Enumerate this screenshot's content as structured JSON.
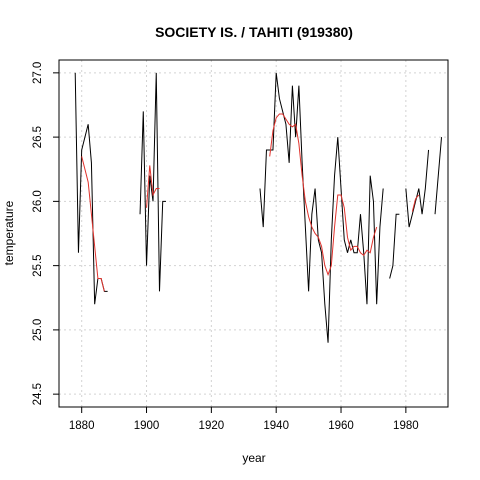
{
  "chart_data": {
    "type": "line",
    "title": "SOCIETY IS. / TAHITI (919380)",
    "xlabel": "year",
    "ylabel": "temperature",
    "xlim": [
      1873,
      1993
    ],
    "ylim": [
      24.4,
      27.1
    ],
    "xticks": [
      1880,
      1900,
      1920,
      1940,
      1960,
      1980
    ],
    "yticks": [
      24.5,
      25.0,
      25.5,
      26.0,
      26.5,
      27.0
    ],
    "xtick_labels": [
      "1880",
      "1900",
      "1920",
      "1940",
      "1960",
      "1980"
    ],
    "ytick_labels": [
      "24.5",
      "25.0",
      "25.5",
      "26.0",
      "26.5",
      "27.0"
    ],
    "grid": true,
    "series": [
      {
        "color": "#000000",
        "segments": [
          [
            [
              1878,
              27.0
            ],
            [
              1879,
              25.6
            ],
            [
              1880,
              26.4
            ],
            [
              1881,
              26.5
            ],
            [
              1882,
              26.6
            ],
            [
              1883,
              26.3
            ],
            [
              1884,
              25.2
            ],
            [
              1885,
              25.4
            ],
            [
              1886,
              25.4
            ],
            [
              1887,
              25.3
            ],
            [
              1888,
              25.3
            ]
          ],
          [
            [
              1898,
              25.9
            ],
            [
              1899,
              26.7
            ],
            [
              1900,
              25.5
            ],
            [
              1901,
              26.2
            ],
            [
              1902,
              26.0
            ],
            [
              1903,
              27.0
            ],
            [
              1904,
              25.3
            ],
            [
              1905,
              26.0
            ],
            [
              1906,
              26.0
            ]
          ],
          [
            [
              1935,
              26.1
            ],
            [
              1936,
              25.8
            ],
            [
              1937,
              26.4
            ],
            [
              1938,
              26.4
            ],
            [
              1939,
              26.4
            ],
            [
              1940,
              27.0
            ],
            [
              1941,
              26.8
            ],
            [
              1942,
              26.7
            ],
            [
              1943,
              26.6
            ],
            [
              1944,
              26.3
            ],
            [
              1945,
              26.9
            ],
            [
              1946,
              26.5
            ],
            [
              1947,
              26.9
            ],
            [
              1948,
              26.3
            ],
            [
              1949,
              25.8
            ],
            [
              1950,
              25.3
            ],
            [
              1951,
              25.9
            ],
            [
              1952,
              26.1
            ],
            [
              1953,
              25.7
            ],
            [
              1954,
              25.6
            ],
            [
              1955,
              25.2
            ],
            [
              1956,
              24.9
            ],
            [
              1957,
              25.7
            ],
            [
              1958,
              26.2
            ],
            [
              1959,
              26.5
            ],
            [
              1960,
              26.1
            ],
            [
              1961,
              25.7
            ],
            [
              1962,
              25.6
            ],
            [
              1963,
              25.7
            ],
            [
              1964,
              25.6
            ],
            [
              1965,
              25.6
            ],
            [
              1966,
              25.9
            ],
            [
              1967,
              25.6
            ],
            [
              1968,
              25.2
            ],
            [
              1969,
              26.2
            ],
            [
              1970,
              26.0
            ],
            [
              1971,
              25.2
            ],
            [
              1972,
              25.8
            ],
            [
              1973,
              26.1
            ]
          ],
          [
            [
              1975,
              25.4
            ],
            [
              1976,
              25.5
            ],
            [
              1977,
              25.9
            ],
            [
              1978,
              25.9
            ]
          ],
          [
            [
              1980,
              26.1
            ],
            [
              1981,
              25.8
            ],
            [
              1982,
              25.9
            ],
            [
              1983,
              26.0
            ],
            [
              1984,
              26.1
            ],
            [
              1985,
              25.9
            ],
            [
              1986,
              26.1
            ],
            [
              1987,
              26.4
            ]
          ],
          [
            [
              1989,
              25.9
            ],
            [
              1990,
              26.2
            ],
            [
              1991,
              26.5
            ]
          ]
        ]
      },
      {
        "color": "#e0322c",
        "segments": [
          [
            [
              1880,
              26.35
            ],
            [
              1881,
              26.25
            ],
            [
              1882,
              26.15
            ],
            [
              1883,
              25.9
            ],
            [
              1884,
              25.65
            ],
            [
              1885,
              25.4
            ],
            [
              1886,
              25.4
            ],
            [
              1887,
              25.3
            ]
          ],
          [
            [
              1900,
              25.95
            ],
            [
              1901,
              26.28
            ],
            [
              1902,
              26.05
            ],
            [
              1903,
              26.1
            ],
            [
              1904,
              26.1
            ]
          ],
          [
            [
              1938,
              26.35
            ],
            [
              1939,
              26.55
            ],
            [
              1940,
              26.65
            ],
            [
              1941,
              26.68
            ],
            [
              1942,
              26.68
            ],
            [
              1943,
              26.64
            ],
            [
              1944,
              26.6
            ],
            [
              1945,
              26.58
            ],
            [
              1946,
              26.6
            ],
            [
              1947,
              26.45
            ],
            [
              1948,
              26.2
            ],
            [
              1949,
              26.0
            ],
            [
              1950,
              25.88
            ],
            [
              1951,
              25.8
            ],
            [
              1952,
              25.75
            ],
            [
              1953,
              25.72
            ],
            [
              1954,
              25.65
            ],
            [
              1955,
              25.5
            ],
            [
              1956,
              25.43
            ],
            [
              1957,
              25.5
            ],
            [
              1958,
              25.8
            ],
            [
              1959,
              26.05
            ],
            [
              1960,
              26.05
            ],
            [
              1961,
              25.95
            ],
            [
              1962,
              25.72
            ],
            [
              1963,
              25.62
            ],
            [
              1964,
              25.65
            ],
            [
              1965,
              25.65
            ],
            [
              1966,
              25.6
            ],
            [
              1967,
              25.58
            ],
            [
              1968,
              25.62
            ],
            [
              1969,
              25.6
            ],
            [
              1970,
              25.72
            ],
            [
              1971,
              25.8
            ]
          ],
          [
            [
              1982,
              25.92
            ],
            [
              1983,
              26.02
            ],
            [
              1984,
              26.05
            ]
          ]
        ]
      }
    ]
  }
}
